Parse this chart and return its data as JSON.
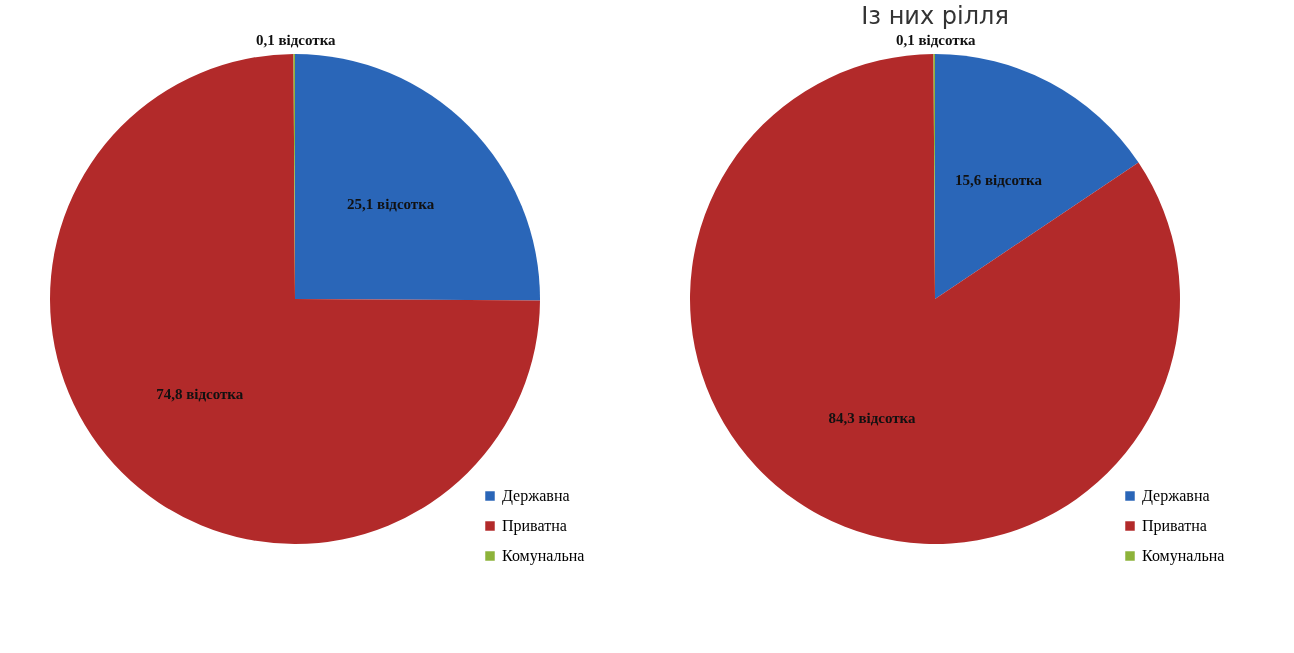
{
  "chart_data": [
    {
      "type": "pie",
      "categories": [
        "Державна",
        "Приватна",
        "Комунальна"
      ],
      "values": [
        25.1,
        74.8,
        0.1
      ],
      "colors": [
        "#2a66b8",
        "#b22a2a",
        "#8db33a"
      ],
      "value_labels": [
        "25,1 відсотка",
        "74,8 відсотка",
        "0,1 відсотка"
      ],
      "legend": "bottom right"
    },
    {
      "type": "pie",
      "title": "Із них рілля",
      "categories": [
        "Державна",
        "Приватна",
        "Комунальна"
      ],
      "values": [
        15.6,
        84.3,
        0.1
      ],
      "colors": [
        "#2a66b8",
        "#b22a2a",
        "#8db33a"
      ],
      "value_labels": [
        "15,6 відсотка",
        "84,3 відсотка",
        "0,1 відсотка"
      ],
      "legend": "bottom right"
    }
  ]
}
